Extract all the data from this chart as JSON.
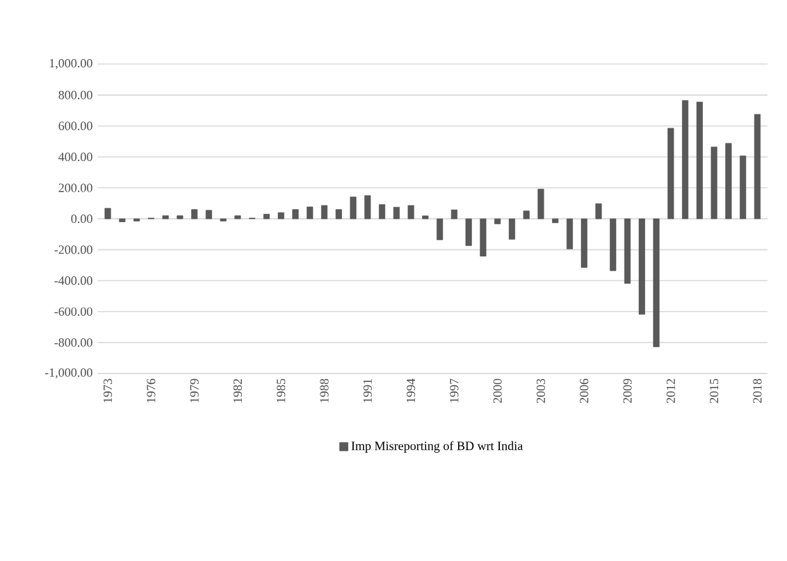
{
  "chart_data": {
    "type": "bar",
    "categories": [
      "1973",
      null,
      null,
      "1976",
      null,
      null,
      "1979",
      null,
      null,
      "1982",
      null,
      null,
      "1985",
      null,
      null,
      "1988",
      null,
      null,
      "1991",
      null,
      null,
      "1994",
      null,
      null,
      "1997",
      null,
      null,
      "2000",
      null,
      null,
      "2003",
      null,
      null,
      "2006",
      null,
      null,
      "2009",
      null,
      null,
      "2012",
      null,
      null,
      "2015",
      null,
      null,
      "2018"
    ],
    "series": [
      {
        "name": "Imp Misreporting of BD wrt India",
        "color": "#595959",
        "values": [
          68,
          -20,
          -15,
          5,
          20,
          20,
          60,
          55,
          -15,
          20,
          5,
          30,
          40,
          60,
          77,
          86,
          60,
          141,
          150,
          92,
          75,
          86,
          19,
          -136,
          58,
          -174,
          -242,
          -33,
          -133,
          51,
          192,
          -26,
          -195,
          -315,
          98,
          -336,
          -418,
          -618,
          -828,
          585,
          765,
          755,
          464,
          488,
          407,
          675
        ]
      }
    ],
    "ylim": [
      -1000,
      1000
    ],
    "yticks": [
      {
        "value": -1000,
        "label": "-1,000.00"
      },
      {
        "value": -800,
        "label": "-800.00"
      },
      {
        "value": -600,
        "label": "-600.00"
      },
      {
        "value": -400,
        "label": "-400.00"
      },
      {
        "value": -200,
        "label": "-200.00"
      },
      {
        "value": 0,
        "label": "0.00"
      },
      {
        "value": 200,
        "label": "200.00"
      },
      {
        "value": 400,
        "label": "400.00"
      },
      {
        "value": 600,
        "label": "600.00"
      },
      {
        "value": 800,
        "label": "800.00"
      },
      {
        "value": 1000,
        "label": "1,000.00"
      }
    ],
    "grid": "y",
    "legend": "bottom"
  }
}
